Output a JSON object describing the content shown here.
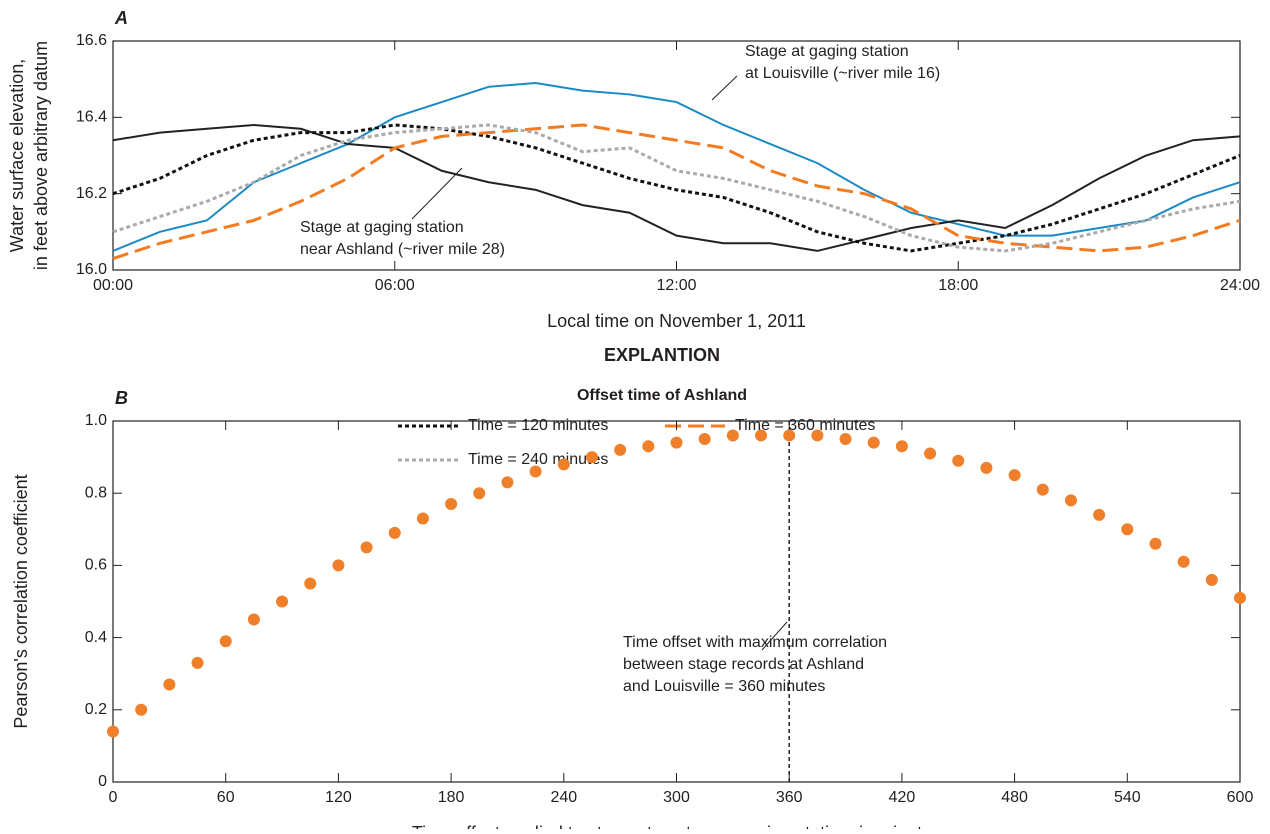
{
  "chart_data": [
    {
      "type": "line",
      "panel_label": "A",
      "xlabel": "Local time on November 1, 2011",
      "ylabel": [
        "Water surface elevation,",
        "in feet above arbitrary datum"
      ],
      "x": [
        0,
        1,
        2,
        3,
        4,
        5,
        6,
        7,
        8,
        9,
        10,
        11,
        12,
        13,
        14,
        15,
        16,
        17,
        18,
        19,
        20,
        21,
        22,
        23,
        24
      ],
      "xlim": [
        0,
        24
      ],
      "xticks": [
        {
          "value": 0,
          "label": "00:00"
        },
        {
          "value": 6,
          "label": "06:00"
        },
        {
          "value": 12,
          "label": "12:00"
        },
        {
          "value": 18,
          "label": "18:00"
        },
        {
          "value": 24,
          "label": "24:00"
        }
      ],
      "ylim": [
        16.0,
        16.6
      ],
      "yticks": [
        {
          "value": 16,
          "label": "16.0"
        },
        16.2,
        16.4,
        16.6
      ],
      "series": [
        {
          "color": "#1b8ac4",
          "style": "solid",
          "values": [
            16.05,
            16.1,
            16.13,
            16.23,
            16.28,
            16.33,
            16.4,
            16.44,
            16.48,
            16.49,
            16.47,
            16.46,
            16.44,
            16.38,
            16.33,
            16.28,
            16.21,
            16.15,
            16.12,
            16.09,
            16.09,
            16.11,
            16.13,
            16.19,
            16.23
          ]
        },
        {
          "color": "#222222",
          "style": "solid",
          "values": [
            16.34,
            16.36,
            16.37,
            16.38,
            16.37,
            16.33,
            16.32,
            16.26,
            16.23,
            16.21,
            16.17,
            16.15,
            16.09,
            16.07,
            16.07,
            16.05,
            16.08,
            16.11,
            16.13,
            16.11,
            16.17,
            16.24,
            16.3,
            16.34,
            16.35
          ]
        },
        {
          "name": "Time = 120 minutes",
          "color": "#111111",
          "style": "dotted",
          "values": [
            16.2,
            16.24,
            16.3,
            16.34,
            16.36,
            16.36,
            16.38,
            16.37,
            16.35,
            16.32,
            16.28,
            16.24,
            16.21,
            16.19,
            16.15,
            16.1,
            16.07,
            16.05,
            16.07,
            16.09,
            16.12,
            16.16,
            16.2,
            16.25,
            16.3
          ]
        },
        {
          "name": "Time = 360 minutes",
          "color": "#f47b20",
          "style": "dashed",
          "values": [
            16.03,
            16.07,
            16.1,
            16.13,
            16.18,
            16.24,
            16.32,
            16.35,
            16.36,
            16.37,
            16.38,
            16.36,
            16.34,
            16.32,
            16.26,
            16.22,
            16.2,
            16.16,
            16.09,
            16.07,
            16.06,
            16.05,
            16.06,
            16.09,
            16.13
          ]
        },
        {
          "name": "Time = 240 minutes",
          "color": "#aaaaaa",
          "style": "dotted",
          "values": [
            16.1,
            16.14,
            16.18,
            16.23,
            16.3,
            16.34,
            16.36,
            16.37,
            16.38,
            16.36,
            16.31,
            16.32,
            16.26,
            16.24,
            16.21,
            16.18,
            16.14,
            16.09,
            16.06,
            16.05,
            16.07,
            16.1,
            16.13,
            16.16,
            16.18
          ]
        }
      ],
      "annotations": [
        {
          "lines": [
            "Stage at gaging station",
            "at Louisville (~river mile 16)"
          ]
        },
        {
          "lines": [
            "Stage at gaging station",
            "near Ashland (~river mile 28)"
          ]
        }
      ],
      "legend_title": "EXPLANTION",
      "legend_subtitle": "Offset time of Ashland"
    },
    {
      "type": "scatter",
      "panel_label": "B",
      "xlabel": "Time offset applied to stage at upstream gaging station, in minutes",
      "ylabel": [
        "Pearson's correlation coefficient"
      ],
      "color": "#f07f2a",
      "x": [
        0,
        15,
        30,
        45,
        60,
        75,
        90,
        105,
        120,
        135,
        150,
        165,
        180,
        195,
        210,
        225,
        240,
        255,
        270,
        285,
        300,
        315,
        330,
        345,
        360,
        375,
        390,
        405,
        420,
        435,
        450,
        465,
        480,
        495,
        510,
        525,
        540,
        555,
        570,
        585,
        600
      ],
      "values": [
        0.14,
        0.2,
        0.27,
        0.33,
        0.39,
        0.45,
        0.5,
        0.55,
        0.6,
        0.65,
        0.69,
        0.73,
        0.77,
        0.8,
        0.83,
        0.86,
        0.88,
        0.9,
        0.92,
        0.93,
        0.94,
        0.95,
        0.96,
        0.96,
        0.96,
        0.96,
        0.95,
        0.94,
        0.93,
        0.91,
        0.89,
        0.87,
        0.85,
        0.81,
        0.78,
        0.74,
        0.7,
        0.66,
        0.61,
        0.56,
        0.51
      ],
      "xlim": [
        0,
        600
      ],
      "xticks": [
        0,
        60,
        120,
        180,
        240,
        300,
        360,
        420,
        480,
        540,
        600
      ],
      "ylim": [
        0,
        1
      ],
      "yticks": [
        0,
        0.2,
        0.4,
        0.6,
        0.8,
        {
          "value": 1,
          "label": "1.0"
        }
      ],
      "vline": 360,
      "annotations": [
        {
          "lines": [
            "Time offset with maximum correlation",
            "between stage records at Ashland",
            "and Louisville = 360 minutes"
          ]
        }
      ]
    }
  ]
}
